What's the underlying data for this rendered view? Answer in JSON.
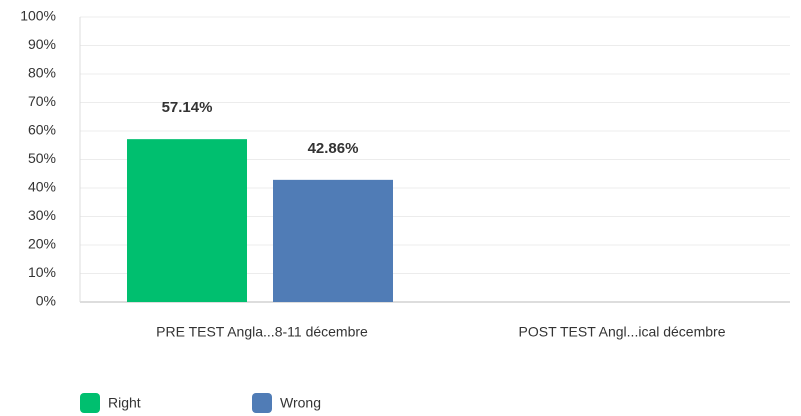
{
  "chart_data": {
    "type": "bar",
    "categories": [
      "PRE TEST Angla...8-11 décembre",
      "POST TEST Angl...ical décembre"
    ],
    "series": [
      {
        "name": "Right",
        "color": "#00bf6f",
        "values": [
          57.14,
          null
        ],
        "value_labels": [
          "57.14%",
          null
        ]
      },
      {
        "name": "Wrong",
        "color": "#507cb6",
        "values": [
          42.86,
          null
        ],
        "value_labels": [
          "42.86%",
          null
        ]
      }
    ],
    "ylim": [
      0,
      100
    ],
    "yticks": [
      {
        "value": 0,
        "label": "0%"
      },
      {
        "value": 10,
        "label": "10%"
      },
      {
        "value": 20,
        "label": "20%"
      },
      {
        "value": 30,
        "label": "30%"
      },
      {
        "value": 40,
        "label": "40%"
      },
      {
        "value": 50,
        "label": "50%"
      },
      {
        "value": 60,
        "label": "60%"
      },
      {
        "value": 70,
        "label": "70%"
      },
      {
        "value": 80,
        "label": "80%"
      },
      {
        "value": 90,
        "label": "90%"
      },
      {
        "value": 100,
        "label": "100%"
      }
    ],
    "grid": true
  }
}
